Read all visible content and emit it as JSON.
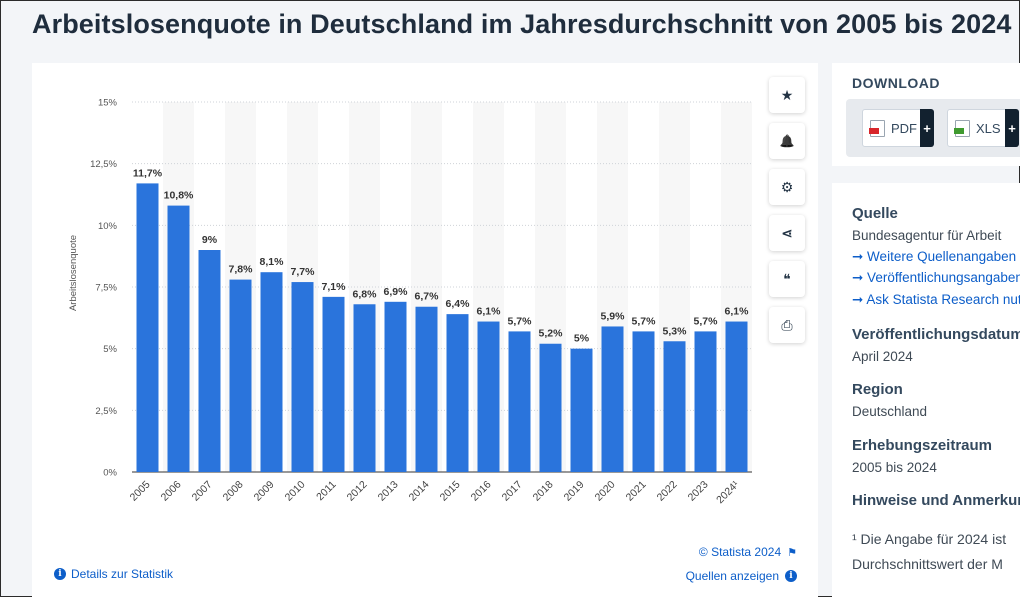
{
  "page": {
    "title": "Arbeitslosenquote in Deutschland im Jahresdurchschnitt von 2005 bis 2024"
  },
  "actions": {
    "star_icon": "★",
    "bell_icon": "🔔",
    "gear_icon": "⚙",
    "share_icon": "⋖",
    "quote_icon": "❝",
    "print_icon": "⎙"
  },
  "footer": {
    "details_label": "Details zur Statistik",
    "copyright_label": "© Statista 2024",
    "sources_label": "Quellen anzeigen",
    "info_glyph": "i",
    "flag_glyph": "⚑"
  },
  "download": {
    "title": "DOWNLOAD",
    "pdf_label": "PDF",
    "xls_label": "XLS",
    "plus": "+"
  },
  "info": {
    "source_head": "Quelle",
    "source_value": "Bundesagentur für Arbeit",
    "links": [
      "➞ Weitere Quellenangaben",
      "➞ Veröffentlichungsangaben",
      "➞ Ask Statista Research nutzen"
    ],
    "pubdate_head": "Veröffentlichungsdatum",
    "pubdate_value": "April 2024",
    "region_head": "Region",
    "region_value": "Deutschland",
    "period_head": "Erhebungszeitraum",
    "period_value": "2005 bis 2024",
    "notes_head": "Hinweise und Anmerkungen",
    "note_line1": "¹ Die Angabe für 2024 ist",
    "note_line2": "Durchschnittswert der M"
  },
  "colors": {
    "bar": "#2a74dc",
    "stripe": "#f7f7f7",
    "grid": "#cfd3d8",
    "link": "#0d5ec9"
  },
  "chart_data": {
    "type": "bar",
    "title": "Arbeitslosenquote in Deutschland im Jahresdurchschnitt von 2005 bis 2024",
    "xlabel": "",
    "ylabel": "Arbeitslosenquote",
    "ylim": [
      0,
      15
    ],
    "yticks": [
      0,
      2.5,
      5,
      7.5,
      10,
      12.5,
      15
    ],
    "ytick_labels": [
      "0%",
      "2,5%",
      "5%",
      "7,5%",
      "10%",
      "12,5%",
      "15%"
    ],
    "grid": true,
    "categories": [
      "2005",
      "2006",
      "2007",
      "2008",
      "2009",
      "2010",
      "2011",
      "2012",
      "2013",
      "2014",
      "2015",
      "2016",
      "2017",
      "2018",
      "2019",
      "2020",
      "2021",
      "2022",
      "2023",
      "2024¹"
    ],
    "values": [
      11.7,
      10.8,
      9,
      7.8,
      8.1,
      7.7,
      7.1,
      6.8,
      6.9,
      6.7,
      6.4,
      6.1,
      5.7,
      5.2,
      5,
      5.9,
      5.7,
      5.3,
      5.7,
      6.1
    ],
    "value_labels": [
      "11,7%",
      "10,8%",
      "9%",
      "7,8%",
      "8,1%",
      "7,7%",
      "7,1%",
      "6,8%",
      "6,9%",
      "6,7%",
      "6,4%",
      "6,1%",
      "5,7%",
      "5,2%",
      "5%",
      "5,9%",
      "5,7%",
      "5,3%",
      "5,7%",
      "6,1%"
    ]
  }
}
